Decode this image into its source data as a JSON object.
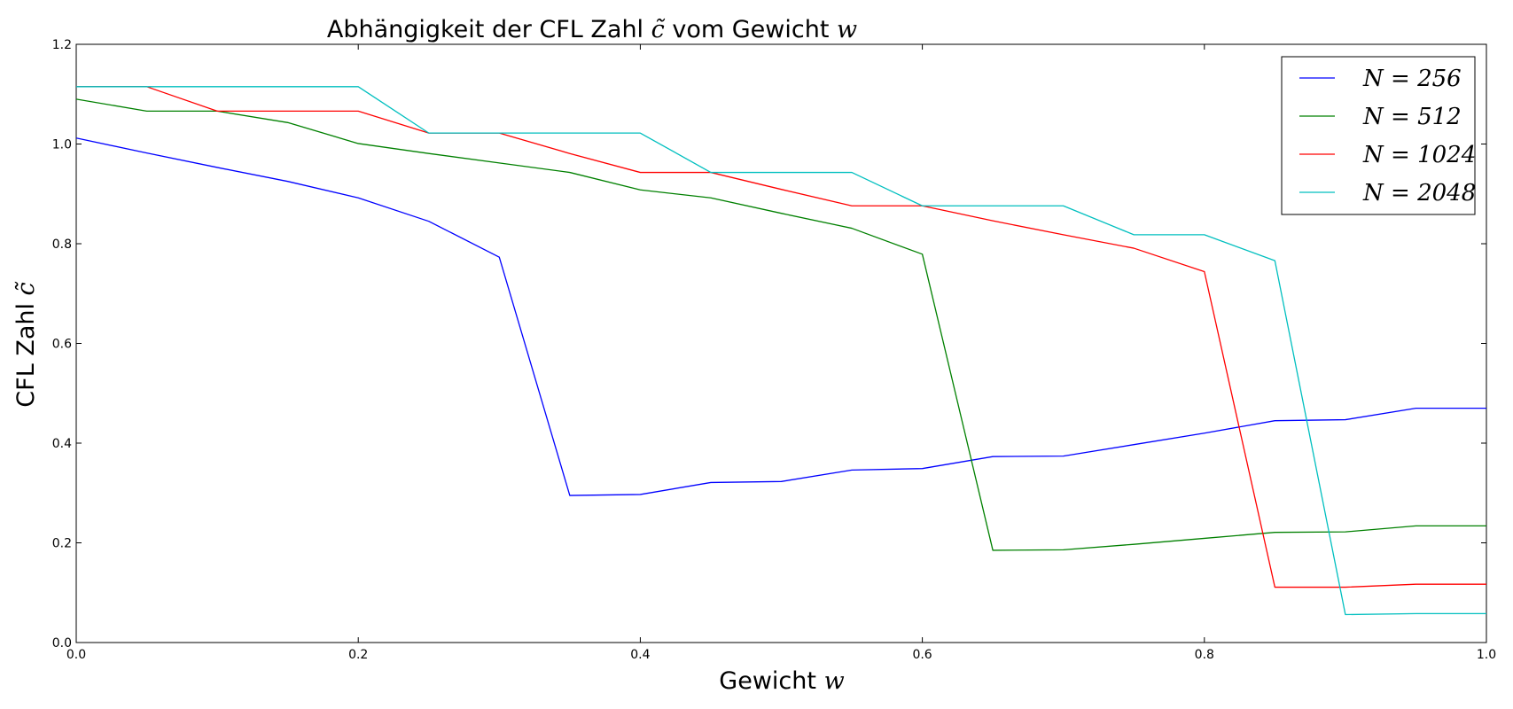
{
  "chart_data": {
    "type": "line",
    "title": "Abhängigkeit der CFL Zahl",
    "title_math": "c̃",
    "title_suffix": "vom Gewicht",
    "title_suffix_math": "w",
    "xlabel": "Gewicht",
    "xlabel_math": "w",
    "ylabel": "CFL Zahl",
    "ylabel_math": "c̃",
    "xlim": [
      0.0,
      1.0
    ],
    "ylim": [
      0.0,
      1.2
    ],
    "xticks": [
      "0.0",
      "0.2",
      "0.4",
      "0.6",
      "0.8",
      "1.0"
    ],
    "yticks": [
      "0.0",
      "0.2",
      "0.4",
      "0.6",
      "0.8",
      "1.0",
      "1.2"
    ],
    "grid": false,
    "legend_position": "top-right",
    "x": [
      0.0,
      0.05,
      0.1,
      0.15,
      0.2,
      0.25,
      0.3,
      0.35,
      0.4,
      0.45,
      0.5,
      0.55,
      0.6,
      0.65,
      0.7,
      0.75,
      0.8,
      0.85,
      0.9,
      0.95,
      1.0
    ],
    "series": [
      {
        "name": "N = 256",
        "color": "#0000ff",
        "values": [
          1.012,
          0.982,
          0.953,
          0.925,
          0.892,
          0.845,
          0.773,
          0.295,
          0.297,
          0.321,
          0.323,
          0.346,
          0.349,
          0.373,
          0.374,
          0.397,
          0.42,
          0.445,
          0.447,
          0.47,
          0.47
        ]
      },
      {
        "name": "N = 512",
        "color": "#008000",
        "values": [
          1.09,
          1.066,
          1.066,
          1.043,
          1.001,
          0.981,
          0.962,
          0.943,
          0.908,
          0.892,
          0.861,
          0.831,
          0.779,
          0.185,
          0.186,
          0.197,
          0.209,
          0.221,
          0.222,
          0.234,
          0.234
        ]
      },
      {
        "name": "N = 1024",
        "color": "#ff0000",
        "values": [
          1.115,
          1.115,
          1.066,
          1.066,
          1.066,
          1.022,
          1.022,
          0.981,
          0.943,
          0.943,
          0.909,
          0.876,
          0.876,
          0.846,
          0.818,
          0.791,
          0.744,
          0.111,
          0.111,
          0.117,
          0.117
        ]
      },
      {
        "name": "N = 2048",
        "color": "#00bfbf",
        "values": [
          1.115,
          1.115,
          1.115,
          1.115,
          1.115,
          1.022,
          1.022,
          1.022,
          1.022,
          0.943,
          0.943,
          0.943,
          0.876,
          0.876,
          0.876,
          0.818,
          0.818,
          0.766,
          0.056,
          0.058,
          0.058
        ]
      }
    ]
  }
}
